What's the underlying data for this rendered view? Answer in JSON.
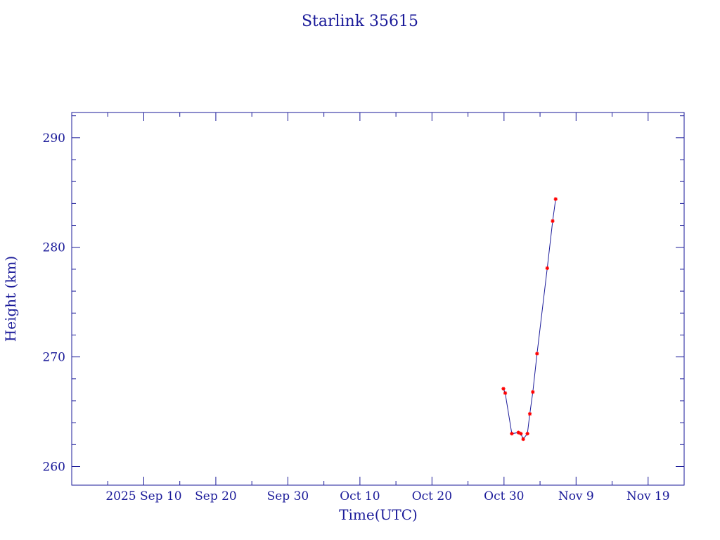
{
  "chart_data": {
    "type": "line",
    "title": "Starlink 35615",
    "xlabel": "Time(UTC)",
    "ylabel": "Height (km)",
    "x_is_date": true,
    "xlim": [
      "2025-08-31",
      "2025-11-24"
    ],
    "ylim": [
      258.3,
      292.3
    ],
    "x_ticks": [
      {
        "label": "2025 Sep 10",
        "date": "2025-09-10"
      },
      {
        "label": "Sep 20",
        "date": "2025-09-20"
      },
      {
        "label": "Sep 30",
        "date": "2025-09-30"
      },
      {
        "label": "Oct 10",
        "date": "2025-10-10"
      },
      {
        "label": "Oct 20",
        "date": "2025-10-20"
      },
      {
        "label": "Oct 30",
        "date": "2025-10-30"
      },
      {
        "label": "Nov  9",
        "date": "2025-11-09"
      },
      {
        "label": "Nov 19",
        "date": "2025-11-19"
      }
    ],
    "y_ticks": [
      260,
      270,
      280,
      290
    ],
    "grid": false,
    "colors": {
      "axis": "#1a1a99",
      "line": "#1a1a99",
      "marker": "#ff0000"
    },
    "series": [
      {
        "points": [
          {
            "x": "2025-10-29T22:00",
            "y": 267.1
          },
          {
            "x": "2025-10-30T04:00",
            "y": 266.7
          },
          {
            "x": "2025-10-31T02:00",
            "y": 263.0
          },
          {
            "x": "2025-11-01T00:00",
            "y": 263.1
          },
          {
            "x": "2025-11-01T08:00",
            "y": 263.0
          },
          {
            "x": "2025-11-01T16:00",
            "y": 262.5
          },
          {
            "x": "2025-11-02T06:00",
            "y": 263.0
          },
          {
            "x": "2025-11-02T14:00",
            "y": 264.8
          },
          {
            "x": "2025-11-03T00:00",
            "y": 266.8
          },
          {
            "x": "2025-11-03T14:00",
            "y": 270.3
          },
          {
            "x": "2025-11-05T00:00",
            "y": 278.1
          },
          {
            "x": "2025-11-05T18:00",
            "y": 282.4
          },
          {
            "x": "2025-11-06T04:00",
            "y": 284.4
          }
        ]
      }
    ]
  }
}
